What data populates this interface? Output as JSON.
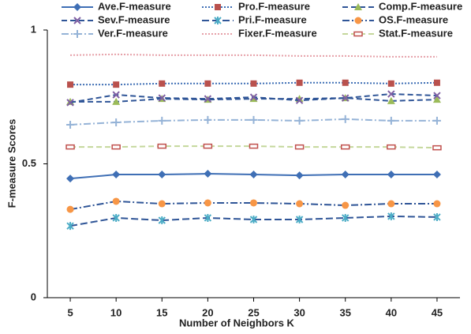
{
  "chart_data": {
    "type": "line",
    "x": [
      5,
      10,
      15,
      20,
      25,
      30,
      35,
      40,
      45
    ],
    "xlim": [
      2.5,
      47.5
    ],
    "xticks": [
      5,
      10,
      15,
      20,
      25,
      30,
      35,
      40,
      45
    ],
    "ylim": [
      0,
      1
    ],
    "yticks": [
      0,
      0.5,
      1
    ],
    "xlabel": "Number of Neighbors K",
    "ylabel": "F-measure Scores",
    "grid": false,
    "legend": "top",
    "series": [
      {
        "name": "Ave.F-measure",
        "color": "#3f6fb5",
        "line_color": "#3f6fb5",
        "dash": "none",
        "marker": "diamond",
        "values": [
          0.445,
          0.46,
          0.46,
          0.463,
          0.46,
          0.457,
          0.46,
          0.46,
          0.46
        ]
      },
      {
        "name": "Pro.F-measure",
        "color": "#b9514d",
        "line_color": "#3f6fb5",
        "dash": "2,2",
        "marker": "square",
        "values": [
          0.796,
          0.796,
          0.8,
          0.8,
          0.8,
          0.803,
          0.803,
          0.8,
          0.803
        ]
      },
      {
        "name": "Comp.F-measure",
        "color": "#9bbb59",
        "line_color": "#2f5597",
        "dash": "7,4",
        "marker": "triangle",
        "values": [
          0.732,
          0.732,
          0.743,
          0.74,
          0.743,
          0.743,
          0.746,
          0.735,
          0.74
        ]
      },
      {
        "name": "Sev.F-measure",
        "color": "#7f5fa3",
        "line_color": "#2f5597",
        "dash": "7,4",
        "marker": "x",
        "values": [
          0.729,
          0.758,
          0.746,
          0.743,
          0.749,
          0.737,
          0.746,
          0.761,
          0.755
        ]
      },
      {
        "name": "Pri.F-measure",
        "color": "#4bacc6",
        "line_color": "#2f5597",
        "dash": "9,4",
        "marker": "star",
        "values": [
          0.268,
          0.298,
          0.289,
          0.298,
          0.292,
          0.292,
          0.298,
          0.304,
          0.301
        ]
      },
      {
        "name": "OS.F-measure",
        "color": "#f79646",
        "line_color": "#2f5597",
        "dash": "9,3,2,3",
        "marker": "circle",
        "values": [
          0.33,
          0.36,
          0.351,
          0.354,
          0.354,
          0.351,
          0.345,
          0.351,
          0.351
        ]
      },
      {
        "name": "Ver.F-measure",
        "color": "#95b3d7",
        "line_color": "#95b3d7",
        "dash": "9,3,2,3",
        "marker": "plus",
        "values": [
          0.646,
          0.655,
          0.661,
          0.664,
          0.664,
          0.661,
          0.667,
          0.661,
          0.661
        ]
      },
      {
        "name": "Fixer.F-measure",
        "color": "#e6a0a8",
        "line_color": "#e6a0a8",
        "dash": "2,2",
        "marker": "none",
        "values": [
          0.906,
          0.909,
          0.906,
          0.906,
          0.906,
          0.903,
          0.903,
          0.9,
          0.9
        ]
      },
      {
        "name": "Stat.F-measure",
        "color": "#c0504d",
        "line_color": "#c4d79b",
        "dash": "7,4",
        "marker": "rect",
        "values": [
          0.563,
          0.563,
          0.566,
          0.566,
          0.566,
          0.563,
          0.563,
          0.563,
          0.56
        ]
      }
    ]
  }
}
